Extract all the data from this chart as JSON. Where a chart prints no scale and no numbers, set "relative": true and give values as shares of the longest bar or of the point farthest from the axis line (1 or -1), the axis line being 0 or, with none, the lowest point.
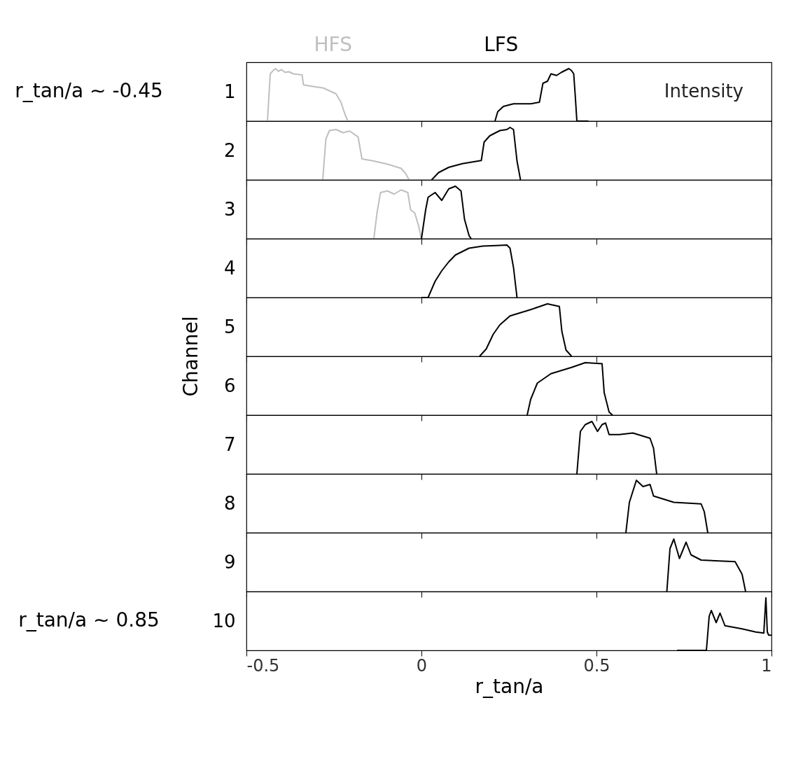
{
  "chart_data": [
    {
      "type": "line",
      "relative": true,
      "ylabel": "1",
      "xlim": [
        -0.5,
        1
      ],
      "xticks": [
        -0.5,
        0,
        0.5,
        1
      ],
      "tick_labels": false,
      "annotations": [
        "r_tan/a ∼ -0.45",
        "Intensity"
      ],
      "series": [
        {
          "name": "HFS",
          "color": "#bfbfbf",
          "x": [
            -0.45,
            -0.44,
            -0.432,
            -0.424,
            -0.417,
            -0.409,
            -0.4,
            -0.39,
            -0.378,
            -0.366,
            -0.341,
            -0.337,
            -0.31,
            -0.28,
            -0.244,
            -0.23,
            -0.218,
            -0.21
          ],
          "values": [
            0,
            0,
            0.9,
            0.96,
            1.0,
            0.95,
            0.98,
            0.93,
            0.94,
            0.9,
            0.88,
            0.69,
            0.66,
            0.63,
            0.52,
            0.36,
            0.12,
            0
          ]
        },
        {
          "name": "LFS",
          "color": "#000000",
          "x": [
            0.21,
            0.218,
            0.234,
            0.263,
            0.312,
            0.337,
            0.347,
            0.36,
            0.37,
            0.386,
            0.4,
            0.421,
            0.429,
            0.435,
            0.44,
            0.444,
            0.477
          ],
          "values": [
            0,
            0.18,
            0.28,
            0.33,
            0.33,
            0.36,
            0.72,
            0.76,
            0.9,
            0.87,
            0.93,
            1.0,
            0.96,
            0.9,
            0.42,
            0,
            0
          ]
        }
      ]
    },
    {
      "type": "line",
      "relative": true,
      "ylabel": "2",
      "xlim": [
        -0.5,
        1
      ],
      "xticks": [
        -0.5,
        0,
        0.5,
        1
      ],
      "tick_labels": false,
      "series": [
        {
          "color": "#bfbfbf",
          "x": [
            -0.282,
            -0.273,
            -0.263,
            -0.244,
            -0.224,
            -0.205,
            -0.181,
            -0.17,
            -0.136,
            -0.097,
            -0.058,
            -0.045,
            -0.035
          ],
          "values": [
            0,
            0.78,
            0.94,
            0.96,
            0.9,
            0.93,
            0.82,
            0.4,
            0.36,
            0.3,
            0.22,
            0.12,
            0
          ]
        },
        {
          "color": "#000000",
          "x": [
            0.029,
            0.049,
            0.078,
            0.117,
            0.171,
            0.179,
            0.195,
            0.224,
            0.244,
            0.253,
            0.263,
            0.273,
            0.283
          ],
          "values": [
            0,
            0.14,
            0.24,
            0.31,
            0.37,
            0.72,
            0.84,
            0.94,
            0.96,
            1.0,
            0.96,
            0.36,
            0
          ]
        }
      ]
    },
    {
      "type": "line",
      "relative": true,
      "ylabel": "3",
      "xlim": [
        -0.5,
        1
      ],
      "xticks": [
        -0.5,
        0,
        0.5,
        1
      ],
      "tick_labels": false,
      "series": [
        {
          "color": "#bfbfbf",
          "x": [
            -0.136,
            -0.127,
            -0.117,
            -0.097,
            -0.078,
            -0.058,
            -0.039,
            -0.031,
            -0.019,
            -0.008,
            0
          ],
          "values": [
            0,
            0.49,
            0.88,
            0.91,
            0.85,
            0.93,
            0.88,
            0.55,
            0.49,
            0.24,
            0
          ]
        },
        {
          "color": "#000000",
          "x": [
            0,
            0.012,
            0.019,
            0.039,
            0.058,
            0.078,
            0.097,
            0.113,
            0.123,
            0.136,
            0.142
          ],
          "values": [
            0,
            0.55,
            0.79,
            0.88,
            0.73,
            0.95,
            1.0,
            0.91,
            0.37,
            0.06,
            0
          ]
        }
      ]
    },
    {
      "type": "line",
      "relative": true,
      "ylabel": "4",
      "xlim": [
        -0.5,
        1
      ],
      "xticks": [
        -0.5,
        0,
        0.5,
        1
      ],
      "tick_labels": false,
      "series": [
        {
          "color": "#000000",
          "x": [
            0,
            0.019,
            0.039,
            0.058,
            0.078,
            0.097,
            0.136,
            0.175,
            0.214,
            0.244,
            0.253,
            0.263,
            0.273
          ],
          "values": [
            0,
            0,
            0.31,
            0.51,
            0.68,
            0.81,
            0.94,
            0.98,
            0.99,
            1.0,
            0.94,
            0.57,
            0
          ]
        }
      ]
    },
    {
      "type": "line",
      "relative": true,
      "ylabel": "5",
      "xlim": [
        -0.5,
        1
      ],
      "xticks": [
        -0.5,
        0,
        0.5,
        1
      ],
      "tick_labels": false,
      "series": [
        {
          "color": "#000000",
          "x": [
            0.166,
            0.185,
            0.205,
            0.224,
            0.253,
            0.312,
            0.36,
            0.394,
            0.401,
            0.413,
            0.429
          ],
          "values": [
            0,
            0.14,
            0.42,
            0.6,
            0.77,
            0.89,
            1.0,
            0.95,
            0.48,
            0.12,
            0
          ]
        }
      ]
    },
    {
      "type": "line",
      "relative": true,
      "ylabel": "6",
      "xlim": [
        -0.5,
        1
      ],
      "xticks": [
        -0.5,
        0,
        0.5,
        1
      ],
      "tick_labels": false,
      "annotations": [
        "Channel"
      ],
      "series": [
        {
          "color": "#000000",
          "x": [
            0.302,
            0.312,
            0.331,
            0.37,
            0.429,
            0.468,
            0.516,
            0.522,
            0.536,
            0.546
          ],
          "values": [
            0,
            0.3,
            0.61,
            0.79,
            0.91,
            1.0,
            0.98,
            0.43,
            0.06,
            0
          ]
        }
      ]
    },
    {
      "type": "line",
      "relative": true,
      "ylabel": "7",
      "xlim": [
        -0.5,
        1
      ],
      "xticks": [
        -0.5,
        0,
        0.5,
        1
      ],
      "tick_labels": false,
      "series": [
        {
          "color": "#000000",
          "x": [
            0.444,
            0.454,
            0.468,
            0.487,
            0.503,
            0.516,
            0.526,
            0.536,
            0.565,
            0.604,
            0.653,
            0.663,
            0.672
          ],
          "values": [
            0,
            0.81,
            0.94,
            1.0,
            0.81,
            0.94,
            0.97,
            0.75,
            0.75,
            0.78,
            0.68,
            0.49,
            0
          ]
        }
      ]
    },
    {
      "type": "line",
      "relative": true,
      "ylabel": "8",
      "xlim": [
        -0.5,
        1
      ],
      "xticks": [
        -0.5,
        0,
        0.5,
        1
      ],
      "tick_labels": false,
      "series": [
        {
          "color": "#000000",
          "x": [
            0.584,
            0.594,
            0.614,
            0.633,
            0.653,
            0.663,
            0.692,
            0.721,
            0.799,
            0.808,
            0.818
          ],
          "values": [
            0,
            0.58,
            1.0,
            0.88,
            0.92,
            0.7,
            0.64,
            0.58,
            0.55,
            0.4,
            0
          ]
        }
      ]
    },
    {
      "type": "line",
      "relative": true,
      "ylabel": "9",
      "xlim": [
        -0.5,
        1
      ],
      "xticks": [
        -0.5,
        0,
        0.5,
        1
      ],
      "tick_labels": false,
      "series": [
        {
          "color": "#000000",
          "x": [
            0.701,
            0.71,
            0.721,
            0.737,
            0.756,
            0.77,
            0.799,
            0.896,
            0.916,
            0.926
          ],
          "values": [
            0,
            0.82,
            1.0,
            0.63,
            0.94,
            0.7,
            0.6,
            0.57,
            0.33,
            0
          ]
        }
      ]
    },
    {
      "type": "line",
      "relative": true,
      "ylabel": "10",
      "xlabel": "r_tan/a",
      "xlim": [
        -0.5,
        1
      ],
      "xticks": [
        -0.5,
        0,
        0.5,
        1
      ],
      "tick_labels": "x",
      "annotations": [
        "r_tan/a ∼ 0.85"
      ],
      "series": [
        {
          "color": "#000000",
          "x": [
            0.73,
            0.814,
            0.822,
            0.828,
            0.842,
            0.853,
            0.867,
            0.916,
            0.955,
            0.978,
            0.984,
            0.988,
            0.992,
            1.0
          ],
          "values": [
            0,
            0,
            0.65,
            0.76,
            0.53,
            0.71,
            0.47,
            0.41,
            0.35,
            0.33,
            1.0,
            0.35,
            0.29,
            0.29
          ]
        }
      ]
    }
  ]
}
